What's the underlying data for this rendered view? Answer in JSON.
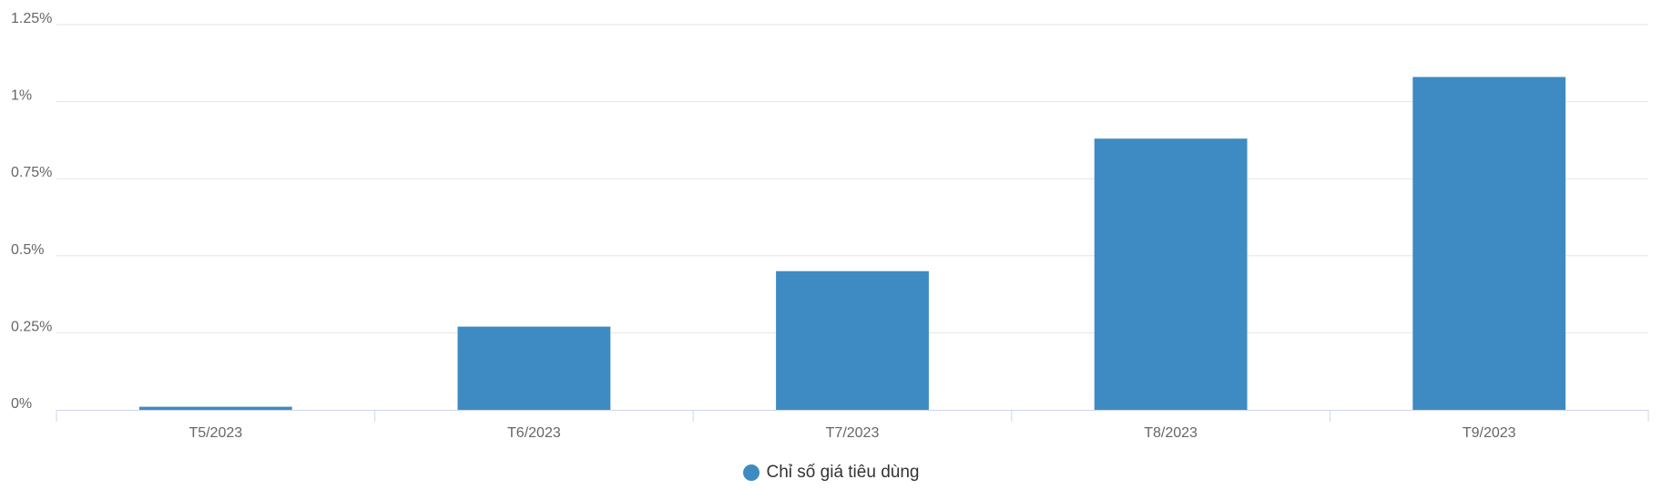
{
  "chart_data": {
    "type": "bar",
    "categories": [
      "T5/2023",
      "T6/2023",
      "T7/2023",
      "T8/2023",
      "T9/2023"
    ],
    "series": [
      {
        "name": "Chỉ số giá tiêu dùng",
        "values": [
          0.01,
          0.27,
          0.45,
          0.88,
          1.08
        ],
        "color": "#3e8bc3"
      }
    ],
    "ylim": [
      0,
      1.25
    ],
    "yticks": [
      {
        "value": 0,
        "label": "0%"
      },
      {
        "value": 0.25,
        "label": "0.25%"
      },
      {
        "value": 0.5,
        "label": "0.5%"
      },
      {
        "value": 0.75,
        "label": "0.75%"
      },
      {
        "value": 1,
        "label": "1%"
      },
      {
        "value": 1.25,
        "label": "1.25%"
      }
    ],
    "grid": true,
    "legend_position": "bottom-center",
    "colors": {
      "grid": "#e6e6e6",
      "axis": "#ccd6eb",
      "tick_text": "#666666"
    }
  }
}
